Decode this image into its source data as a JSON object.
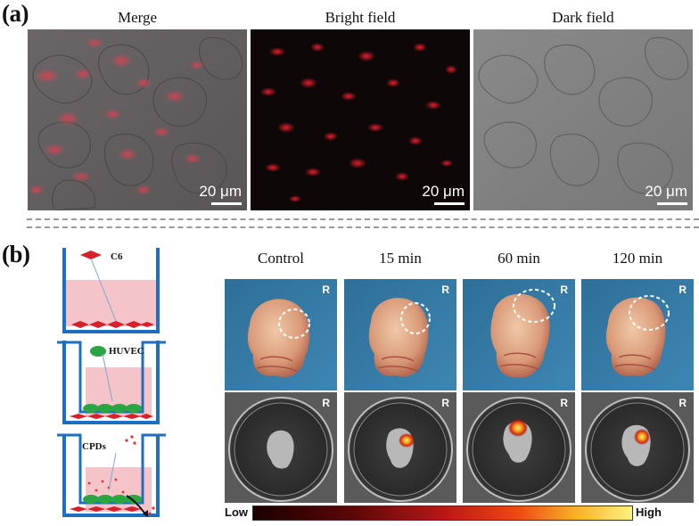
{
  "panel_a": {
    "label": "(a)",
    "titles": [
      "Merge",
      "Bright field",
      "Dark field"
    ],
    "scale_bar": "20 μm"
  },
  "panel_b": {
    "label": "(b)",
    "schematic": {
      "c6": "C6",
      "huvec": "HUVEC",
      "cpds": "CPDs"
    },
    "columns": [
      "Control",
      "15 min",
      "60 min",
      "120 min"
    ],
    "side_mark": "R",
    "colorbar": {
      "low": "Low",
      "high": "High"
    }
  }
}
